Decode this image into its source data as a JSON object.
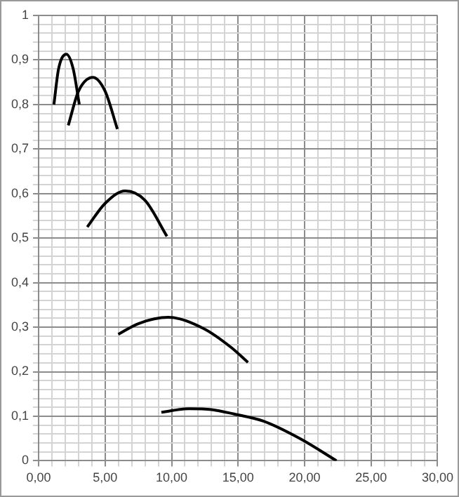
{
  "chart_data": {
    "type": "line",
    "series": [
      {
        "color": "#000000",
        "x": [
          1.15,
          1.5,
          2.09,
          2.6,
          3.06
        ],
        "values": [
          0.8,
          0.88,
          0.913,
          0.88,
          0.8
        ]
      },
      {
        "color": "#000000",
        "x": [
          2.23,
          3.0,
          4.08,
          5.0,
          5.92
        ],
        "values": [
          0.753,
          0.83,
          0.861,
          0.83,
          0.745
        ]
      },
      {
        "color": "#000000",
        "x": [
          3.66,
          5.0,
          6.51,
          8.0,
          9.65
        ],
        "values": [
          0.525,
          0.578,
          0.606,
          0.585,
          0.504
        ]
      },
      {
        "color": "#000000",
        "x": [
          5.99,
          7.5,
          9.75,
          12.4,
          14.5,
          15.74
        ],
        "values": [
          0.284,
          0.308,
          0.322,
          0.297,
          0.254,
          0.221
        ]
      },
      {
        "color": "#000000",
        "x": [
          9.23,
          11.3,
          13.0,
          14.7,
          16.9,
          19.7,
          22.4
        ],
        "values": [
          0.109,
          0.117,
          0.115,
          0.105,
          0.089,
          0.049,
          0
        ]
      }
    ],
    "xlim": [
      0,
      30
    ],
    "xticks": [
      {
        "value": 0,
        "label": "0,00"
      },
      {
        "value": 1,
        "label": null
      },
      {
        "value": 2,
        "label": null
      },
      {
        "value": 3,
        "label": null
      },
      {
        "value": 4,
        "label": null
      },
      {
        "value": 5,
        "label": "5,00"
      },
      {
        "value": 6,
        "label": null
      },
      {
        "value": 7,
        "label": null
      },
      {
        "value": 8,
        "label": null
      },
      {
        "value": 9,
        "label": null
      },
      {
        "value": 10,
        "label": "10,00"
      },
      {
        "value": 11,
        "label": null
      },
      {
        "value": 12,
        "label": null
      },
      {
        "value": 13,
        "label": null
      },
      {
        "value": 14,
        "label": null
      },
      {
        "value": 15,
        "label": "15,00"
      },
      {
        "value": 16,
        "label": null
      },
      {
        "value": 17,
        "label": null
      },
      {
        "value": 18,
        "label": null
      },
      {
        "value": 19,
        "label": null
      },
      {
        "value": 20,
        "label": "20,00"
      },
      {
        "value": 21,
        "label": null
      },
      {
        "value": 22,
        "label": null
      },
      {
        "value": 23,
        "label": null
      },
      {
        "value": 24,
        "label": null
      },
      {
        "value": 25,
        "label": "25,00"
      },
      {
        "value": 26,
        "label": null
      },
      {
        "value": 27,
        "label": null
      },
      {
        "value": 28,
        "label": null
      },
      {
        "value": 29,
        "label": null
      },
      {
        "value": 30,
        "label": "30,00"
      }
    ],
    "ylim": [
      0,
      1
    ],
    "yticks": [
      0,
      {
        "value": 0.02,
        "label": null
      },
      {
        "value": 0.04,
        "label": null
      },
      {
        "value": 0.06,
        "label": null
      },
      {
        "value": 0.08,
        "label": null
      },
      {
        "value": 0.1,
        "label": "0,1"
      },
      {
        "value": 0.12,
        "label": null
      },
      {
        "value": 0.14,
        "label": null
      },
      {
        "value": 0.16,
        "label": null
      },
      {
        "value": 0.18,
        "label": null
      },
      {
        "value": 0.2,
        "label": "0,2"
      },
      {
        "value": 0.22,
        "label": null
      },
      {
        "value": 0.24,
        "label": null
      },
      {
        "value": 0.26,
        "label": null
      },
      {
        "value": 0.28,
        "label": null
      },
      {
        "value": 0.3,
        "label": "0,3"
      },
      {
        "value": 0.32,
        "label": null
      },
      {
        "value": 0.34,
        "label": null
      },
      {
        "value": 0.36,
        "label": null
      },
      {
        "value": 0.38,
        "label": null
      },
      {
        "value": 0.4,
        "label": "0,4"
      },
      {
        "value": 0.42,
        "label": null
      },
      {
        "value": 0.44,
        "label": null
      },
      {
        "value": 0.46,
        "label": null
      },
      {
        "value": 0.48,
        "label": null
      },
      {
        "value": 0.5,
        "label": "0,5"
      },
      {
        "value": 0.52,
        "label": null
      },
      {
        "value": 0.54,
        "label": null
      },
      {
        "value": 0.56,
        "label": null
      },
      {
        "value": 0.58,
        "label": null
      },
      {
        "value": 0.6,
        "label": "0,6"
      },
      {
        "value": 0.62,
        "label": null
      },
      {
        "value": 0.64,
        "label": null
      },
      {
        "value": 0.66,
        "label": null
      },
      {
        "value": 0.68,
        "label": null
      },
      {
        "value": 0.7,
        "label": "0,7"
      },
      {
        "value": 0.72,
        "label": null
      },
      {
        "value": 0.74,
        "label": null
      },
      {
        "value": 0.76,
        "label": null
      },
      {
        "value": 0.78,
        "label": null
      },
      {
        "value": 0.8,
        "label": "0,8"
      },
      {
        "value": 0.82,
        "label": null
      },
      {
        "value": 0.84,
        "label": null
      },
      {
        "value": 0.86,
        "label": null
      },
      {
        "value": 0.88,
        "label": null
      },
      {
        "value": 0.9,
        "label": "0,9"
      },
      {
        "value": 0.92,
        "label": null
      },
      {
        "value": 0.94,
        "label": null
      },
      {
        "value": 0.96,
        "label": null
      },
      {
        "value": 0.98,
        "label": null
      },
      1
    ],
    "grid": true,
    "marker": "none",
    "line_style": "solid"
  }
}
